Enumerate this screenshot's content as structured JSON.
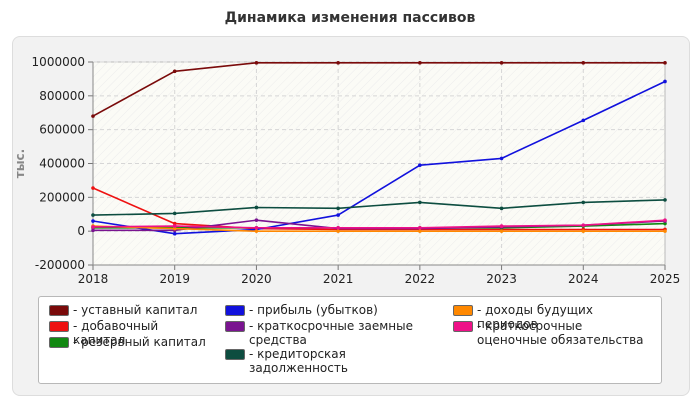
{
  "chart_data": {
    "type": "line",
    "title": "Динамика изменения пассивов",
    "ylabel": "тыс.",
    "xlabel": "",
    "x": [
      2018,
      2019,
      2020,
      2021,
      2022,
      2023,
      2024,
      2025
    ],
    "ylim": [
      -200000,
      1000000
    ],
    "yticks": [
      "-200000",
      "0",
      "200000",
      "400000",
      "600000",
      "800000",
      "1000000"
    ],
    "grid": true,
    "legend_position": "bottom",
    "series": [
      {
        "name": "уставный капитал",
        "color": "#7a0a0a",
        "values": [
          680000,
          945000,
          995000,
          995000,
          995000,
          995000,
          995000,
          995000
        ]
      },
      {
        "name": "добавочный капитал",
        "color": "#ee1111",
        "values": [
          255000,
          45000,
          15000,
          10000,
          10000,
          10000,
          10000,
          10000
        ]
      },
      {
        "name": "резервный капитал",
        "color": "#118811",
        "values": [
          20000,
          20000,
          20000,
          20000,
          20000,
          20000,
          30000,
          45000
        ]
      },
      {
        "name": "прибыль (убытков)",
        "color": "#1111dd",
        "values": [
          60000,
          -15000,
          10000,
          95000,
          390000,
          430000,
          655000,
          885000
        ]
      },
      {
        "name": "краткосрочные заемные средства",
        "color": "#7a1490",
        "values": [
          5000,
          5000,
          65000,
          15000,
          15000,
          25000,
          35000,
          60000
        ]
      },
      {
        "name": "кредиторская задолженность",
        "color": "#0d4d40",
        "values": [
          95000,
          105000,
          140000,
          135000,
          170000,
          135000,
          170000,
          185000
        ]
      },
      {
        "name": "доходы будущих периодов",
        "color": "#ff8800",
        "values": [
          30000,
          15000,
          0,
          0,
          0,
          0,
          0,
          0
        ]
      },
      {
        "name": "краткосрочные оценочные обязательства",
        "color": "#ee1188",
        "values": [
          25000,
          30000,
          20000,
          20000,
          20000,
          30000,
          35000,
          65000
        ]
      }
    ]
  }
}
